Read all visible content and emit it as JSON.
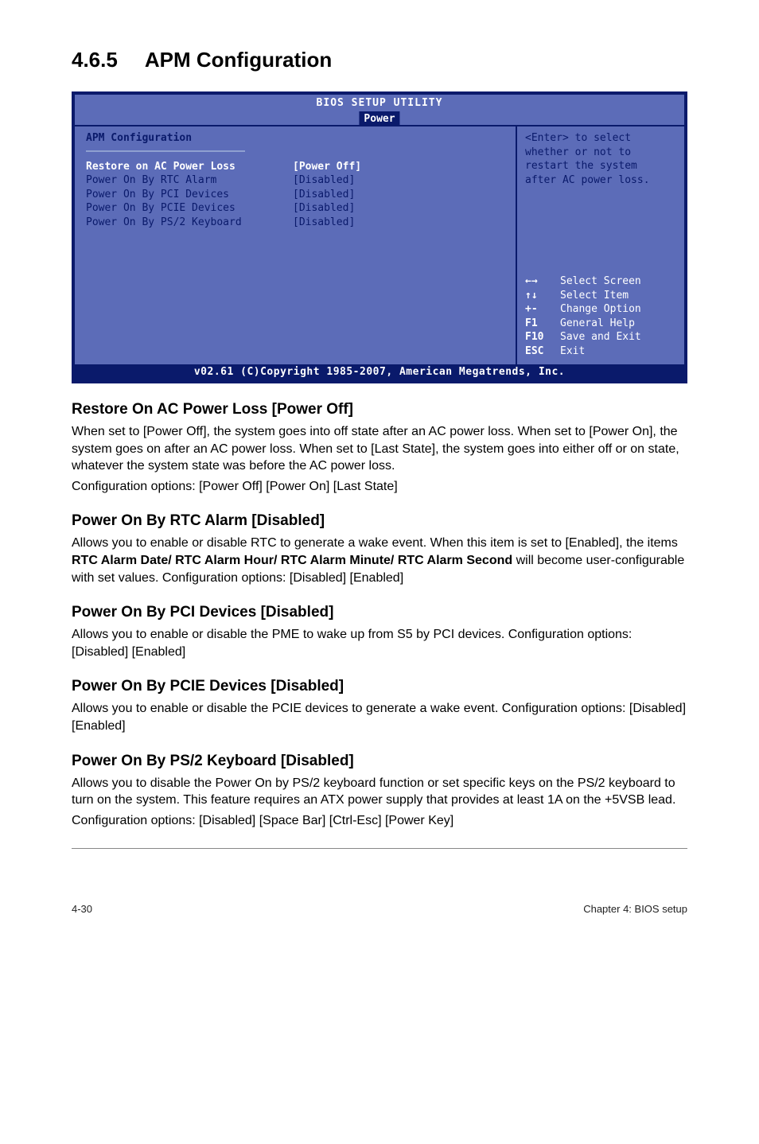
{
  "section": {
    "number": "4.6.5",
    "title": "APM Configuration"
  },
  "bios": {
    "title": "BIOS SETUP UTILITY",
    "tab": "Power",
    "panel_title": "APM Configuration",
    "items": [
      {
        "label": "Restore on AC Power Loss",
        "value": "[Power Off]",
        "hl": true
      },
      {
        "label": "Power On By RTC Alarm",
        "value": "[Disabled]",
        "hl": false
      },
      {
        "label": "Power On By PCI Devices",
        "value": "[Disabled]",
        "hl": false
      },
      {
        "label": "Power On By PCIE Devices",
        "value": "[Disabled]",
        "hl": false
      },
      {
        "label": "Power On By PS/2 Keyboard",
        "value": "[Disabled]",
        "hl": false
      }
    ],
    "help": [
      "<Enter> to select",
      "whether or not to",
      "restart the system",
      "after AC power loss."
    ],
    "nav": [
      {
        "key": "←→",
        "label": "Select Screen"
      },
      {
        "key": "↑↓",
        "label": "Select Item"
      },
      {
        "key": "+-",
        "label": "Change Option"
      },
      {
        "key": "F1",
        "label": "General Help"
      },
      {
        "key": "F10",
        "label": "Save and Exit"
      },
      {
        "key": "ESC",
        "label": "Exit"
      }
    ],
    "footer": "v02.61 (C)Copyright 1985-2007, American Megatrends, Inc."
  },
  "sections": [
    {
      "heading": "Restore On AC Power Loss [Power Off]",
      "paras": [
        "When set to [Power Off], the system goes into off state after an AC power loss. When set to [Power On], the system goes on after an AC power loss. When set to [Last State], the system goes into either off or on state, whatever the system state was before the AC power loss.",
        "Configuration options: [Power Off] [Power On] [Last State]"
      ]
    },
    {
      "heading": "Power On By RTC Alarm [Disabled]",
      "paras": [
        "Allows you to enable or disable RTC to generate a wake event. When this item is set to [Enabled], the items RTC Alarm Date/ RTC Alarm Hour/ RTC Alarm Minute/ RTC Alarm Second will become user-configurable with set values. Configuration options: [Disabled] [Enabled]"
      ],
      "bold_spans": [
        "RTC Alarm Date/ RTC Alarm Hour/ RTC Alarm Minute/ RTC Alarm Second"
      ]
    },
    {
      "heading": "Power On By PCI Devices [Disabled]",
      "paras": [
        "Allows you to enable or disable the PME to wake up from S5 by PCI devices. Configuration options: [Disabled] [Enabled]"
      ]
    },
    {
      "heading": "Power On By PCIE Devices [Disabled]",
      "paras": [
        "Allows you to enable or disable the PCIE devices to generate a wake event. Configuration options: [Disabled] [Enabled]"
      ]
    },
    {
      "heading": "Power On By PS/2 Keyboard [Disabled]",
      "paras": [
        "Allows you to disable the Power On by PS/2 keyboard function or set specific keys on the PS/2 keyboard to turn on the system. This feature requires an ATX power supply that provides at least 1A on the +5VSB lead.",
        "Configuration options: [Disabled] [Space Bar] [Ctrl-Esc] [Power Key]"
      ]
    }
  ],
  "footer": {
    "left": "4-30",
    "right": "Chapter 4: BIOS setup"
  }
}
